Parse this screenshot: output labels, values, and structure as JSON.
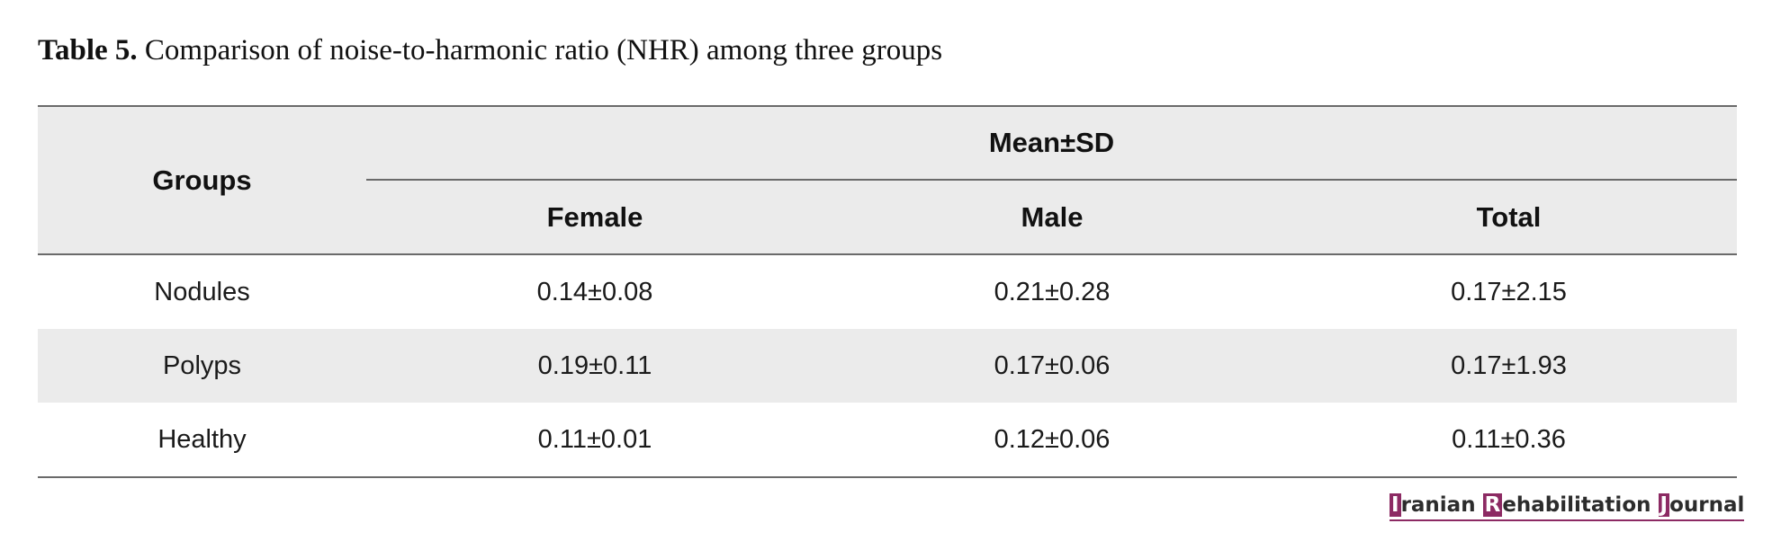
{
  "caption": {
    "label": "Table 5.",
    "text": "Comparison of noise-to-harmonic ratio (NHR) among three groups"
  },
  "table": {
    "header": {
      "groups": "Groups",
      "span": "Mean±SD",
      "columns": [
        "Female",
        "Male",
        "Total"
      ]
    },
    "rows": [
      {
        "group": "Nodules",
        "female": "0.14±0.08",
        "male": "0.21±0.28",
        "total": "0.17±2.15"
      },
      {
        "group": "Polyps",
        "female": "0.19±0.11",
        "male": "0.17±0.06",
        "total": "0.17±1.93"
      },
      {
        "group": "Healthy",
        "female": "0.11±0.01",
        "male": "0.12±0.06",
        "total": "0.11±0.36"
      }
    ]
  },
  "branding": {
    "word1_initial": "I",
    "word1_rest": "ranian ",
    "word2_initial": "R",
    "word2_rest": "ehabilitation ",
    "word3_initial": "J",
    "word3_rest": "ournal",
    "accent_color": "#8c2a63"
  }
}
